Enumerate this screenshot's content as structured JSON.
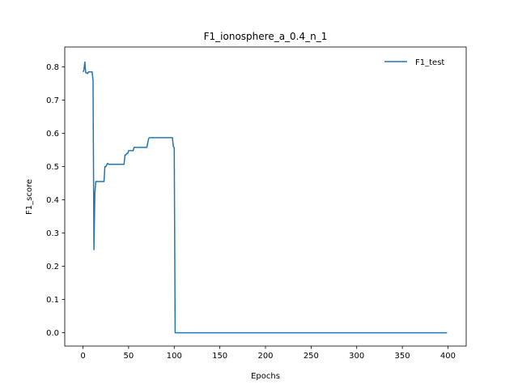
{
  "chart_data": {
    "type": "line",
    "title": "F1_ionosphere_a_0.4_n_1",
    "xlabel": "Epochs",
    "ylabel": "F1_score",
    "xlim": [
      -20,
      420
    ],
    "ylim": [
      -0.04,
      0.86
    ],
    "xticks": [
      0,
      50,
      100,
      150,
      200,
      250,
      300,
      350,
      400
    ],
    "yticks": [
      0.0,
      0.1,
      0.2,
      0.3,
      0.4,
      0.5,
      0.6,
      0.7,
      0.8
    ],
    "ytick_labels": [
      "0.0",
      "0.1",
      "0.2",
      "0.3",
      "0.4",
      "0.5",
      "0.6",
      "0.7",
      "0.8"
    ],
    "grid": false,
    "legend": {
      "position": "top-right",
      "entries": [
        "F1_test"
      ]
    },
    "series": [
      {
        "name": "F1_test",
        "color": "#1f77b4",
        "x": [
          0,
          1,
          2,
          3,
          4,
          5,
          6,
          7,
          8,
          9,
          10,
          11,
          12,
          13,
          14,
          15,
          16,
          17,
          18,
          19,
          20,
          21,
          22,
          23,
          24,
          25,
          26,
          27,
          28,
          30,
          35,
          40,
          45,
          46,
          47,
          48,
          49,
          50,
          51,
          52,
          53,
          54,
          55,
          56,
          58,
          60,
          62,
          65,
          68,
          70,
          71,
          72,
          73,
          75,
          80,
          85,
          90,
          95,
          98,
          99,
          100,
          101,
          102,
          110,
          150,
          200,
          250,
          300,
          350,
          399
        ],
        "y": [
          0.785,
          0.79,
          0.815,
          0.782,
          0.782,
          0.78,
          0.785,
          0.785,
          0.785,
          0.785,
          0.785,
          0.76,
          0.25,
          0.42,
          0.455,
          0.455,
          0.455,
          0.455,
          0.455,
          0.455,
          0.455,
          0.455,
          0.455,
          0.455,
          0.5,
          0.5,
          0.505,
          0.51,
          0.507,
          0.507,
          0.507,
          0.507,
          0.507,
          0.535,
          0.535,
          0.54,
          0.54,
          0.548,
          0.548,
          0.548,
          0.548,
          0.548,
          0.548,
          0.558,
          0.558,
          0.558,
          0.558,
          0.558,
          0.558,
          0.558,
          0.572,
          0.585,
          0.587,
          0.587,
          0.587,
          0.587,
          0.587,
          0.587,
          0.587,
          0.56,
          0.557,
          0.0,
          0.0,
          0.0,
          0.0,
          0.0,
          0.0,
          0.0,
          0.0,
          0.0
        ]
      }
    ]
  }
}
